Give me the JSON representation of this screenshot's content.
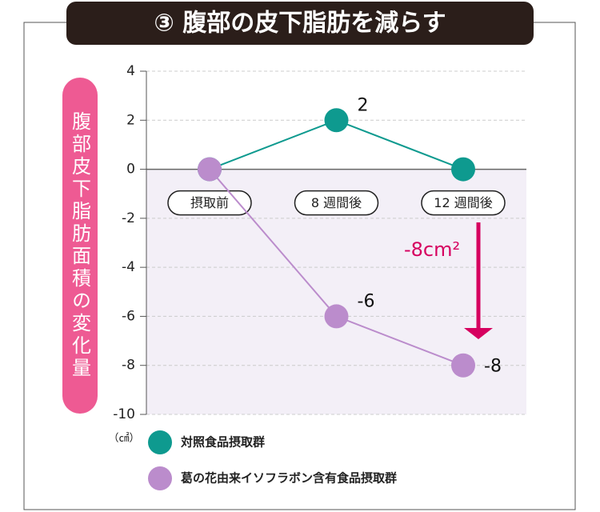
{
  "chart_data": {
    "type": "line",
    "title": "③ 腹部の皮下脂肪を減らす",
    "y_label": "腹部皮下脂肪面積の変化量",
    "y_unit": "（㎠）",
    "categories": [
      "摂取前",
      "8 週間後",
      "12 週間後"
    ],
    "series": [
      {
        "name": "対照食品摂取群",
        "color": "#0e9a8f",
        "values": [
          0,
          2,
          0
        ],
        "value_labels": [
          null,
          "2",
          null
        ]
      },
      {
        "name": "葛の花由来イソフラボン含有食品摂取群",
        "color": "#bb8ccc",
        "values": [
          0,
          -6,
          -8
        ],
        "value_labels": [
          null,
          "-6",
          "-8"
        ]
      }
    ],
    "annotation": "-8cm²",
    "annotation_color": "#d6005f",
    "ylim": [
      -10,
      4
    ],
    "yticks": [
      -10,
      -8,
      -6,
      -4,
      -2,
      0,
      2,
      4
    ],
    "grid": true,
    "negative_shade": "#f3eff7"
  }
}
